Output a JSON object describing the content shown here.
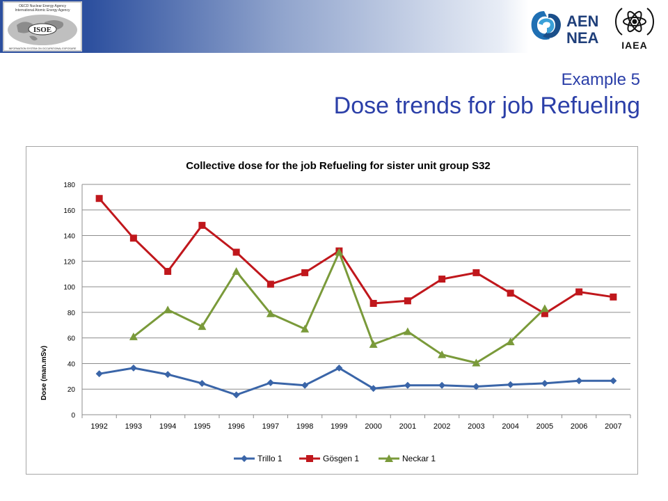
{
  "header": {
    "isoe_small_text_1": "OECD Nuclear Energy Agency",
    "isoe_small_text_2": "International Atomic Energy Agency",
    "isoe_label": "ISOE",
    "isoe_caption": "INFORMATION SYSTEM ON OCCUPATIONAL EXPOSURE",
    "nea_line1": "AEN",
    "nea_line2": "NEA",
    "iaea_label": "IAEA"
  },
  "slide": {
    "subtitle": "Example 5",
    "title": "Dose trends for job Refueling"
  },
  "colors": {
    "trillo": "#3a65a8",
    "gosgen": "#c0171c",
    "neckar": "#7a9a3a",
    "title_blue": "#2b3fa8"
  },
  "chart_data": {
    "type": "line",
    "title": "Collective dose for the job Refueling for sister unit group S32",
    "xlabel": "",
    "ylabel": "Dose (man.mSv)",
    "ylim": [
      0,
      180
    ],
    "yticks": [
      0,
      20,
      40,
      60,
      80,
      100,
      120,
      140,
      160,
      180
    ],
    "grid": true,
    "legend": "bottom",
    "categories": [
      "1992",
      "1993",
      "1994",
      "1995",
      "1996",
      "1997",
      "1998",
      "1999",
      "2000",
      "2001",
      "2002",
      "2003",
      "2004",
      "2005",
      "2006",
      "2007"
    ],
    "series": [
      {
        "name": "Trillo 1",
        "marker": "diamond",
        "color": "#3a65a8",
        "values": [
          32,
          36.5,
          31.5,
          24.5,
          15.5,
          25,
          23,
          36.5,
          20.5,
          23,
          23,
          22,
          23.5,
          24.5,
          26.5,
          26.5
        ]
      },
      {
        "name": "Gösgen 1",
        "marker": "square",
        "color": "#c0171c",
        "values": [
          169,
          138,
          112,
          148,
          127,
          102,
          111,
          128,
          87,
          89,
          106,
          111,
          95,
          79,
          96,
          92
        ]
      },
      {
        "name": "Neckar 1",
        "marker": "triangle",
        "color": "#7a9a3a",
        "values": [
          null,
          61,
          82,
          69,
          112,
          79,
          67,
          127,
          55,
          65,
          47,
          40.5,
          57,
          83,
          null,
          null
        ]
      }
    ]
  }
}
